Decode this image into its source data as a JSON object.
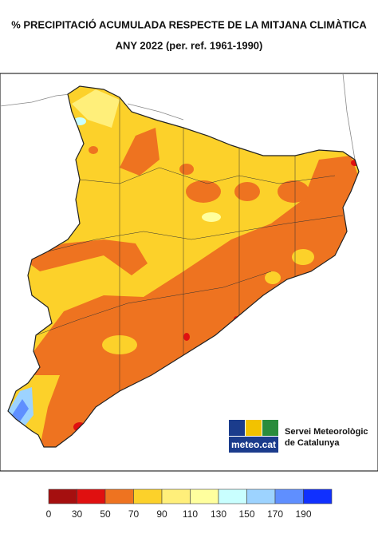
{
  "title": "% PRECIPITACIÓ ACUMULADA RESPECTE DE LA MITJANA CLIMÀTICA",
  "subtitle": "ANY 2022 (per. ref. 1961-1990)",
  "logo": {
    "brand": "meteo.cat",
    "line1": "Servei Meteorològic",
    "line2": "de Catalunya"
  },
  "legend": {
    "ticks": [
      0,
      30,
      50,
      70,
      90,
      110,
      130,
      150,
      170,
      190
    ],
    "colors": [
      "#a50f0f",
      "#e01010",
      "#ee7320",
      "#fcd12a",
      "#ffef7a",
      "#ffff9e",
      "#c9ffff",
      "#9dd3ff",
      "#5f8fff",
      "#1030ff"
    ]
  }
}
